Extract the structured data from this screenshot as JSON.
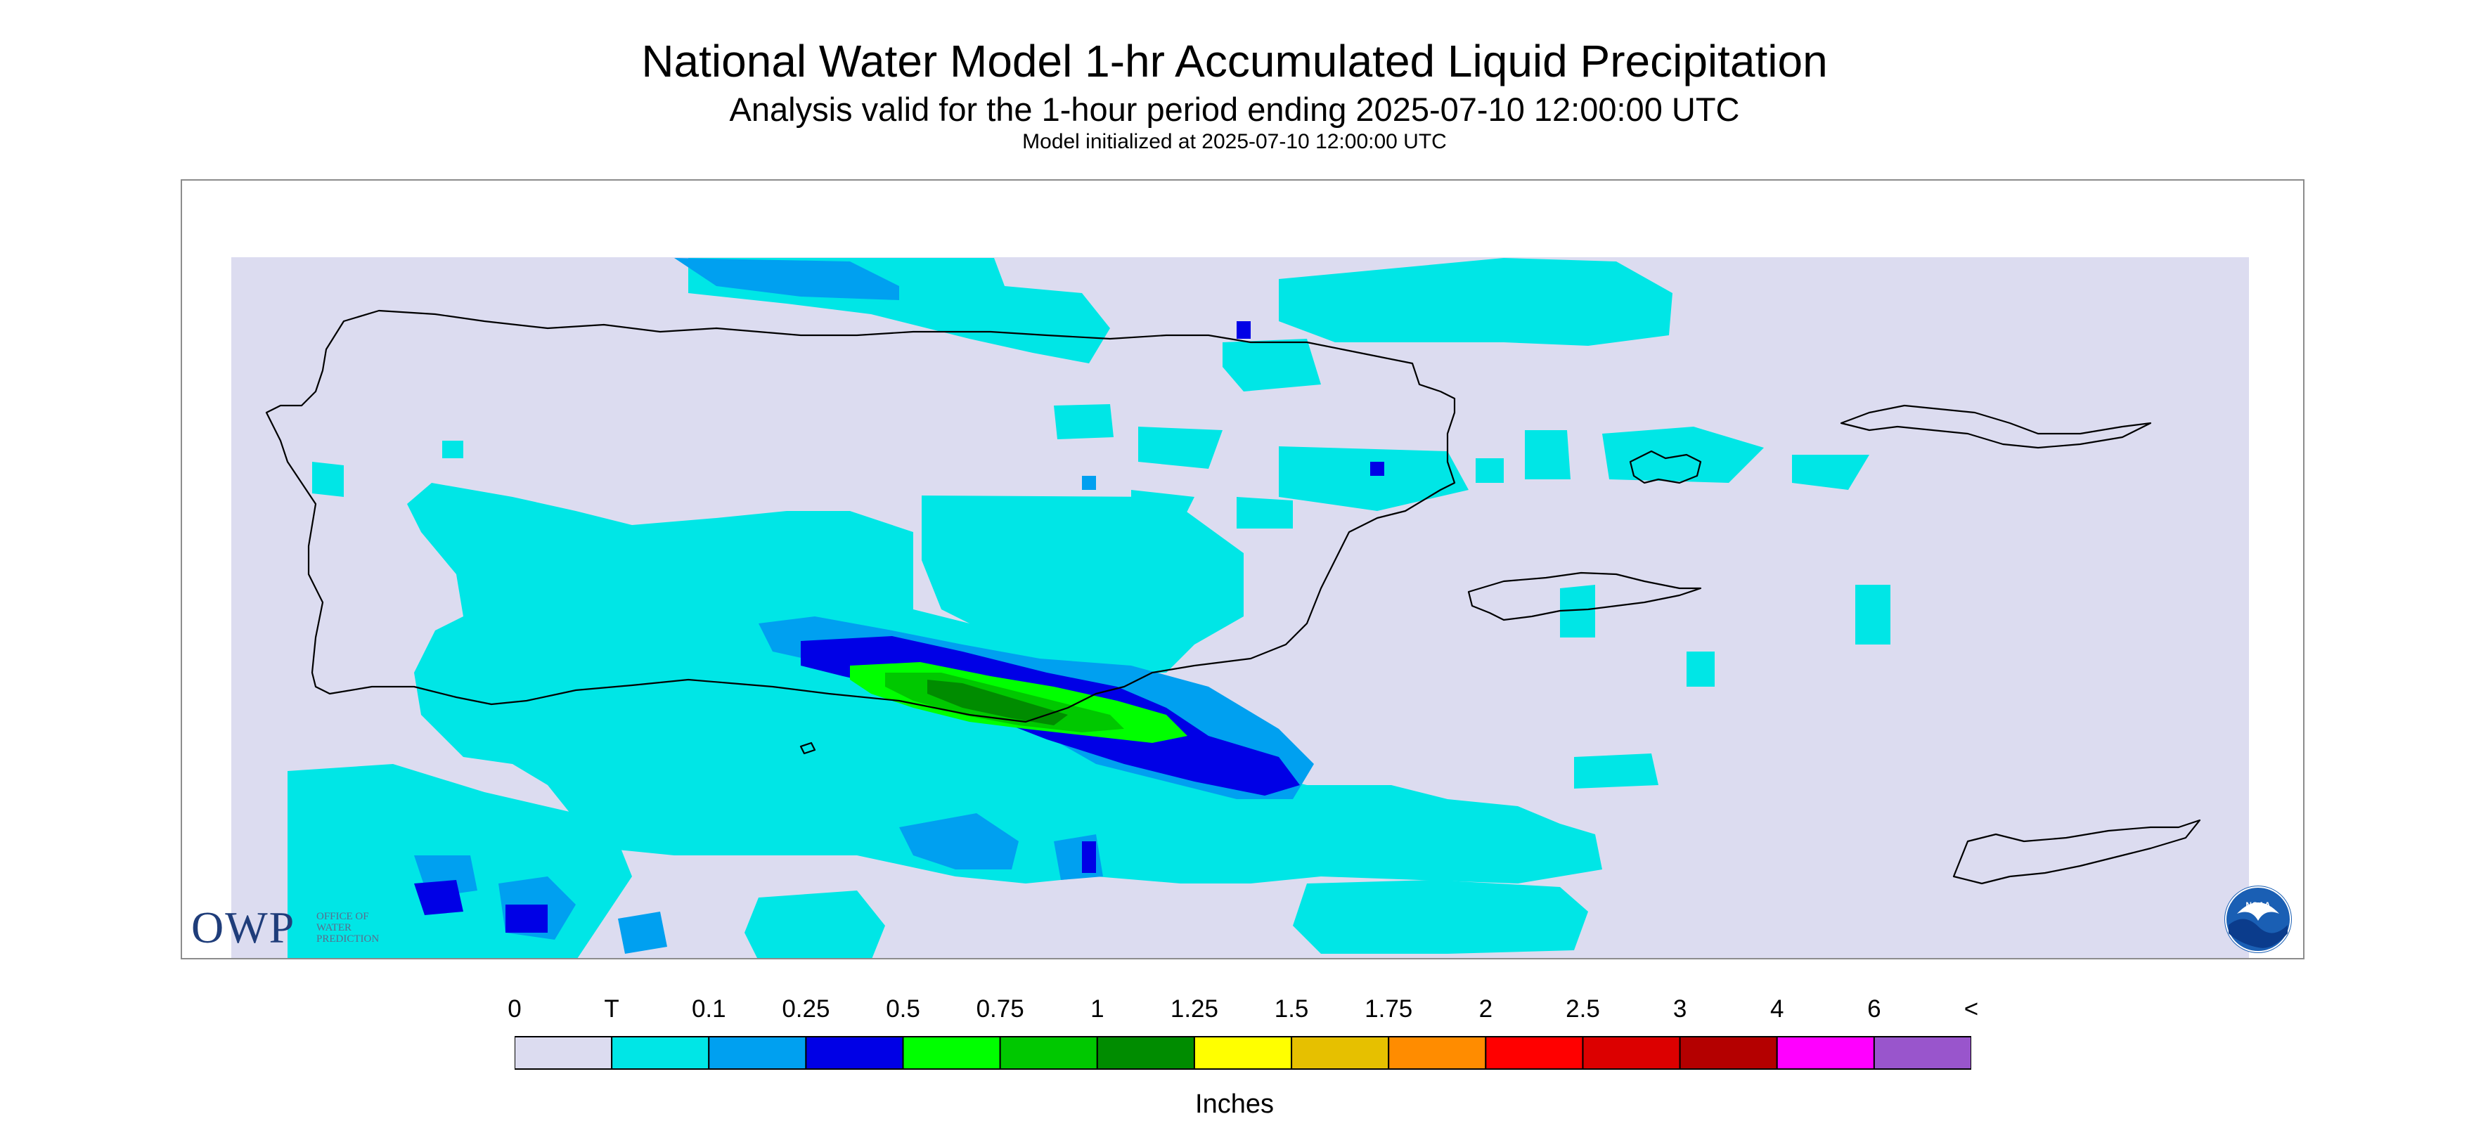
{
  "header": {
    "title": "National Water Model 1-hr Accumulated Liquid Precipitation",
    "subtitle": "Analysis valid for the 1-hour period ending 2025-07-10 12:00:00 UTC",
    "init": "Model initialized at 2025-07-10 12:00:00 UTC"
  },
  "logos": {
    "owp": "OWP",
    "owp_sub": [
      "OFFICE OF",
      "WATER",
      "PREDICTION"
    ],
    "noaa": "NOAA"
  },
  "legend": {
    "tick_labels": [
      "0",
      "T",
      "0.1",
      "0.25",
      "0.5",
      "0.75",
      "1",
      "1.25",
      "1.5",
      "1.75",
      "2",
      "2.5",
      "3",
      "4",
      "6",
      "<"
    ],
    "colors": [
      "#dcdcf0",
      "#00e6e6",
      "#00a0f0",
      "#0000e6",
      "#00ff00",
      "#00c800",
      "#008c00",
      "#ffff00",
      "#e6c000",
      "#ff8c00",
      "#ff0000",
      "#dc0000",
      "#b40000",
      "#ff00ff",
      "#9955cc"
    ],
    "units": "Inches"
  },
  "palette": {
    "no_precip": "#dcdcf0",
    "trace": "#00e6e6",
    "light": "#00a0f0",
    "moderate": "#0000e6",
    "heavy1": "#00ff00",
    "heavy2": "#00c800",
    "heavy3": "#008c00",
    "coast": "#000000"
  }
}
